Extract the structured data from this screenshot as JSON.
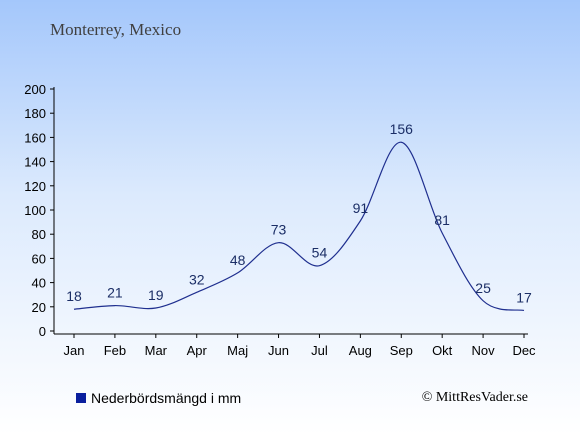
{
  "header": {
    "subtitle": "Monterrey, Mexico"
  },
  "legend": {
    "label": "Nederbördsmängd i mm",
    "color": "#0a1f9e"
  },
  "footer": {
    "copyright": "© MittResVader.se"
  },
  "chart_data": {
    "type": "line",
    "categories": [
      "Jan",
      "Feb",
      "Mar",
      "Apr",
      "Maj",
      "Jun",
      "Jul",
      "Aug",
      "Sep",
      "Okt",
      "Nov",
      "Dec"
    ],
    "series": [
      {
        "name": "Nederbördsmängd i mm",
        "values": [
          18,
          21,
          19,
          32,
          48,
          73,
          54,
          91,
          156,
          81,
          25,
          17
        ]
      }
    ],
    "yticks": [
      0,
      20,
      40,
      60,
      80,
      100,
      120,
      140,
      160,
      180,
      200
    ],
    "ylim": [
      0,
      200
    ],
    "line_color": "#1f2f8f",
    "label_color": "#1b2e66",
    "grid": false,
    "legend_position": "bottom-left"
  }
}
